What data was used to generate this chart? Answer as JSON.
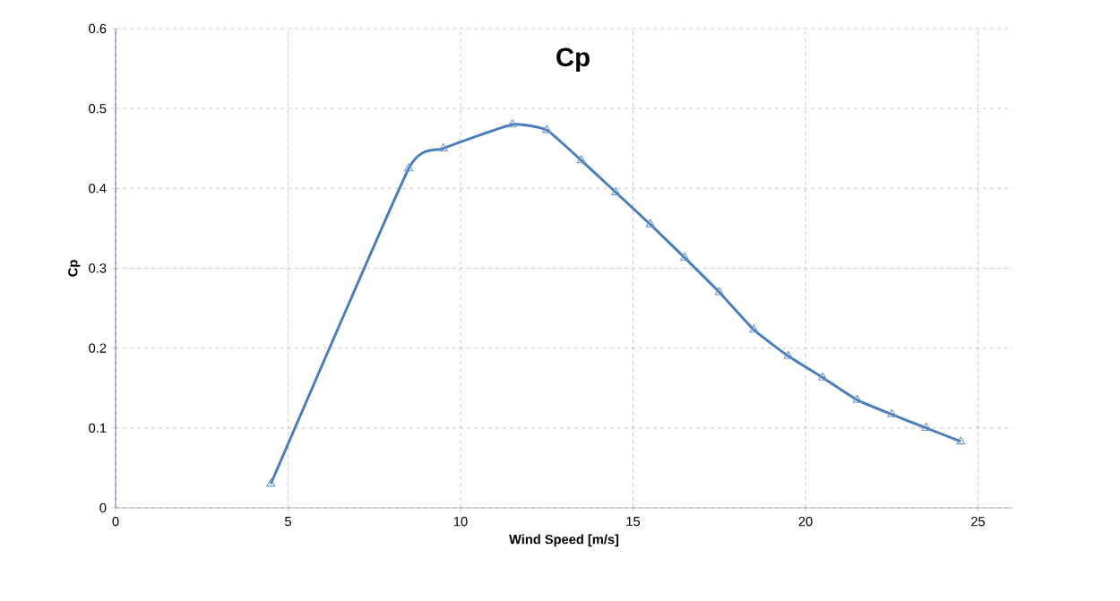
{
  "chart_data": {
    "type": "line",
    "title": "Cp",
    "xlabel": "Wind Speed [m/s]",
    "ylabel": "Cp",
    "x": [
      4.5,
      8.5,
      9.5,
      11.5,
      12.5,
      13.5,
      14.5,
      15.5,
      16.5,
      17.5,
      18.5,
      19.5,
      20.5,
      21.5,
      22.5,
      23.5,
      24.5
    ],
    "series": [
      {
        "color": "#4a7ebb",
        "values": [
          0.03,
          0.425,
          0.45,
          0.48,
          0.473,
          0.435,
          0.395,
          0.355,
          0.313,
          0.27,
          0.223,
          0.19,
          0.163,
          0.135,
          0.117,
          0.1,
          0.083
        ]
      }
    ],
    "xlim": [
      0,
      26
    ],
    "xticks": [
      0,
      5,
      10,
      15,
      20,
      25
    ],
    "ylim": [
      0,
      0.6
    ],
    "yticks": [
      {
        "value": 0,
        "label": "0"
      },
      0.1,
      0.2,
      0.3,
      0.4,
      0.5,
      0.6
    ],
    "grid": true,
    "marker": "triangle",
    "line_style": "solid"
  }
}
